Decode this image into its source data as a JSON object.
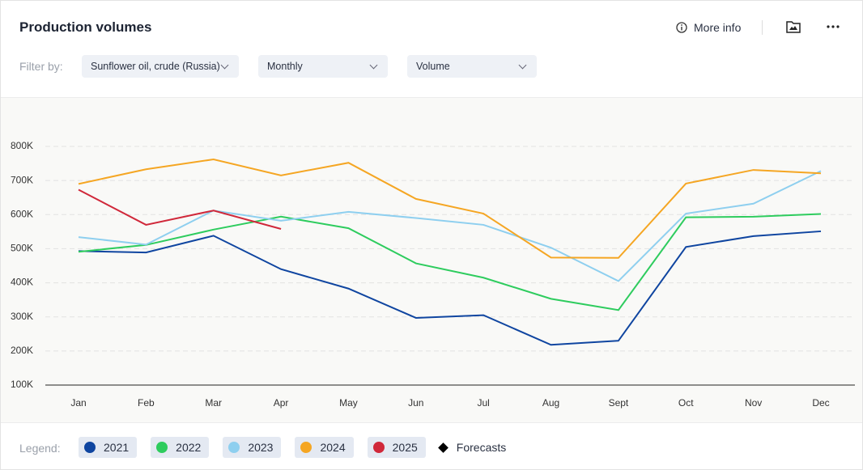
{
  "header": {
    "title": "Production volumes",
    "more_info": "More info"
  },
  "filters": {
    "label": "Filter by:",
    "options": [
      "Sunflower oil, crude (Russia)",
      "Monthly",
      "Volume"
    ]
  },
  "legend": {
    "label": "Legend:",
    "forecasts": "Forecasts"
  },
  "chart_data": {
    "type": "line",
    "categories": [
      "Jan",
      "Feb",
      "Mar",
      "Apr",
      "May",
      "Jun",
      "Jul",
      "Aug",
      "Sept",
      "Oct",
      "Nov",
      "Dec"
    ],
    "series": [
      {
        "name": "2021",
        "color": "#0f45a0",
        "values": [
          493000,
          489000,
          538000,
          440000,
          383000,
          297000,
          305000,
          218000,
          230000,
          505000,
          537000,
          551000
        ]
      },
      {
        "name": "2022",
        "color": "#2ecc5e",
        "values": [
          491000,
          511000,
          556000,
          594000,
          560000,
          457000,
          415000,
          353000,
          320000,
          592000,
          594000,
          602000
        ]
      },
      {
        "name": "2023",
        "color": "#8ecfef",
        "values": [
          534000,
          512000,
          612000,
          582000,
          608000,
          590000,
          570000,
          503000,
          405000,
          603000,
          632000,
          728000
        ]
      },
      {
        "name": "2024",
        "color": "#f5a623",
        "values": [
          690000,
          733000,
          762000,
          715000,
          752000,
          646000,
          603000,
          474000,
          473000,
          691000,
          731000,
          721000
        ]
      },
      {
        "name": "2025",
        "color": "#d0283a",
        "values": [
          673000,
          570000,
          612000,
          558000,
          null,
          null,
          null,
          null,
          null,
          null,
          null,
          null
        ]
      }
    ],
    "ylim": [
      100000,
      800000
    ],
    "yticks": [
      {
        "value": 100000,
        "label": "100K"
      },
      {
        "value": 200000,
        "label": "200K"
      },
      {
        "value": 300000,
        "label": "300K"
      },
      {
        "value": 400000,
        "label": "400K"
      },
      {
        "value": 500000,
        "label": "500K"
      },
      {
        "value": 600000,
        "label": "600K"
      },
      {
        "value": 700000,
        "label": "700K"
      },
      {
        "value": 800000,
        "label": "800K"
      }
    ],
    "grid": true
  }
}
